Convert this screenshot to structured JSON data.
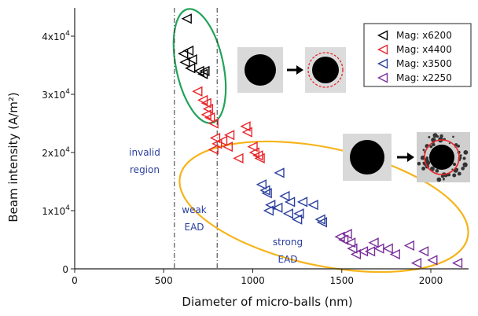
{
  "chart_data": {
    "type": "scatter",
    "xlabel": "Diameter of micro-balls (nm)",
    "ylabel": "Beam intensity (A/m²)",
    "xlim": [
      0,
      2200
    ],
    "ylim": [
      0,
      45000
    ],
    "x_ticks": [
      0,
      500,
      1000,
      1500,
      2000
    ],
    "x_tick_labels": [
      "0",
      "500",
      "1000",
      "1500",
      "2000"
    ],
    "y_ticks": [
      0,
      10000,
      20000,
      30000,
      40000
    ],
    "y_tick_labels": [
      "0",
      "1x10",
      "2x10",
      "3x10",
      "4x10"
    ],
    "y_tick_exponent": "4",
    "vlines": [
      560,
      800
    ],
    "annotations": {
      "invalid_region": [
        "invalid",
        "region"
      ],
      "weak_ead": [
        "weak",
        "EAD"
      ],
      "strong_ead": [
        "strong",
        "EAD"
      ]
    },
    "legend_position": "top-right",
    "series": [
      {
        "name": "Mag: x6200",
        "color": "#000000",
        "points": [
          [
            630,
            43000
          ],
          [
            610,
            37000
          ],
          [
            640,
            37500
          ],
          [
            620,
            35500
          ],
          [
            660,
            36000
          ],
          [
            650,
            34500
          ],
          [
            700,
            34000
          ],
          [
            720,
            33500
          ],
          [
            730,
            34000
          ]
        ]
      },
      {
        "name": "Mag: x4400",
        "color": "#e8262a",
        "points": [
          [
            690,
            30500
          ],
          [
            720,
            29000
          ],
          [
            740,
            28500
          ],
          [
            750,
            27500
          ],
          [
            760,
            26000
          ],
          [
            740,
            26500
          ],
          [
            780,
            25000
          ],
          [
            790,
            22500
          ],
          [
            800,
            21500
          ],
          [
            780,
            20500
          ],
          [
            830,
            22000
          ],
          [
            870,
            23000
          ],
          [
            860,
            21000
          ],
          [
            920,
            19000
          ],
          [
            960,
            24500
          ],
          [
            970,
            23500
          ],
          [
            1000,
            21000
          ],
          [
            1010,
            20000
          ],
          [
            1030,
            19500
          ],
          [
            1040,
            19000
          ]
        ]
      },
      {
        "name": "Mag: x3500",
        "color": "#2a3f9c",
        "points": [
          [
            1050,
            14500
          ],
          [
            1070,
            13500
          ],
          [
            1080,
            13000
          ],
          [
            1150,
            16500
          ],
          [
            1180,
            12500
          ],
          [
            1210,
            11500
          ],
          [
            1200,
            9500
          ],
          [
            1100,
            11000
          ],
          [
            1090,
            10000
          ],
          [
            1140,
            10500
          ],
          [
            1260,
            9500
          ],
          [
            1280,
            11500
          ],
          [
            1250,
            8500
          ],
          [
            1340,
            11000
          ],
          [
            1380,
            8500
          ],
          [
            1390,
            8000
          ]
        ]
      },
      {
        "name": "Mag: x2250",
        "color": "#7a2f9a",
        "points": [
          [
            1490,
            5500
          ],
          [
            1510,
            5000
          ],
          [
            1530,
            6000
          ],
          [
            1550,
            4500
          ],
          [
            1560,
            3500
          ],
          [
            1580,
            2500
          ],
          [
            1620,
            3000
          ],
          [
            1660,
            3000
          ],
          [
            1680,
            4500
          ],
          [
            1710,
            3500
          ],
          [
            1760,
            3500
          ],
          [
            1800,
            2500
          ],
          [
            1880,
            4000
          ],
          [
            1920,
            1000
          ],
          [
            1960,
            3000
          ],
          [
            2010,
            1500
          ],
          [
            2150,
            1000
          ]
        ]
      }
    ]
  }
}
